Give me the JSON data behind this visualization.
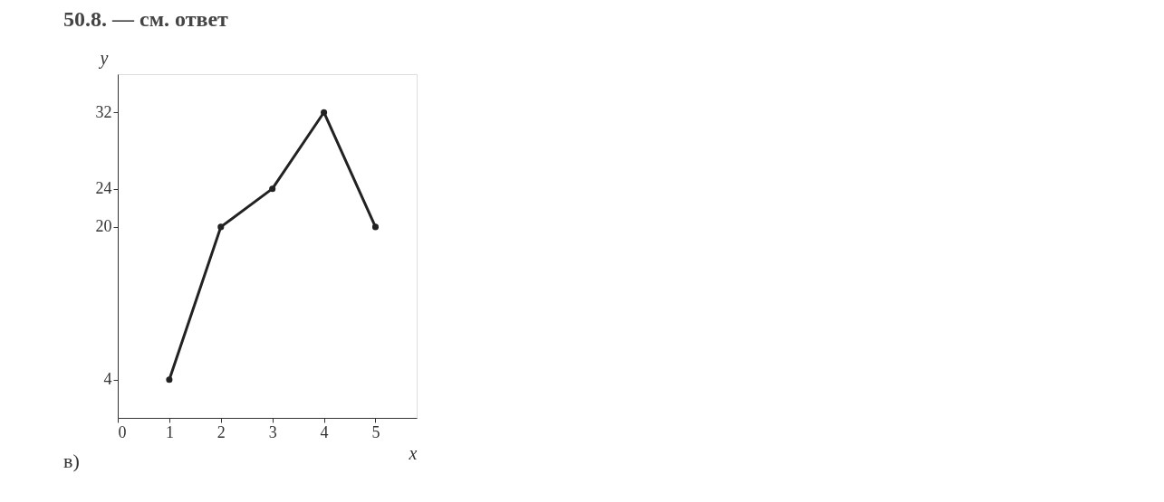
{
  "chart_data": {
    "type": "line",
    "title": "50.8. — см. ответ",
    "x": [
      1,
      2,
      3,
      4,
      5
    ],
    "series": [
      {
        "color": "#222222",
        "values": [
          4,
          20,
          24,
          32,
          20
        ]
      }
    ],
    "xlabel": "x",
    "ylabel": "y",
    "xlim": [
      0,
      5.8
    ],
    "xticks": [
      0,
      1,
      2,
      3,
      4,
      5
    ],
    "ylim": [
      0,
      36
    ],
    "yticks": [
      4,
      20,
      24,
      32
    ],
    "marker": "circle",
    "line_style": "solid",
    "grid": false,
    "annotations": [
      "в)"
    ]
  }
}
